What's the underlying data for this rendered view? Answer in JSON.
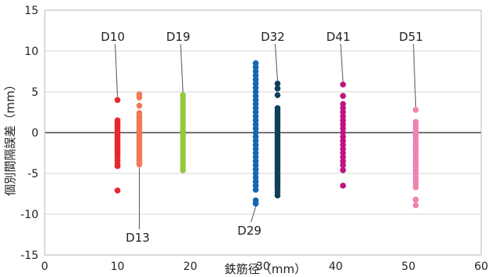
{
  "chart_data": {
    "type": "scatter",
    "title": "",
    "xlabel": "鉄筋径（mm）",
    "ylabel": "個別間隔誤差（mm）",
    "xlim": [
      0,
      60
    ],
    "ylim": [
      -15,
      15
    ],
    "x_ticks": [
      "0",
      "10",
      "20",
      "30",
      "40",
      "50",
      "60"
    ],
    "y_ticks": [
      "-15",
      "-10",
      "-5",
      "0",
      "5",
      "10",
      "15"
    ],
    "grid": "horizontal",
    "zero_line": true,
    "series": [
      {
        "name": "D10",
        "x": 10,
        "color": "#e8262b",
        "label_pos": "top",
        "values": [
          4.0,
          1.5,
          1.2,
          0.9,
          0.6,
          0.3,
          0.0,
          -0.3,
          -0.6,
          -0.9,
          -1.2,
          -1.5,
          -1.8,
          -2.1,
          -2.4,
          -2.7,
          -3.0,
          -3.4,
          -3.8,
          -4.1,
          -7.1
        ]
      },
      {
        "name": "D13",
        "x": 13,
        "color": "#ef7a55",
        "label_pos": "bottom",
        "values": [
          4.7,
          4.3,
          3.3,
          2.4,
          2.0,
          1.7,
          1.4,
          1.1,
          0.8,
          0.5,
          0.2,
          -0.1,
          -0.4,
          -0.7,
          -1.0,
          -1.3,
          -1.6,
          -1.9,
          -2.2,
          -2.5,
          -2.8,
          -3.1,
          -3.4,
          -3.7,
          -3.9
        ]
      },
      {
        "name": "D19",
        "x": 19,
        "color": "#95c93d",
        "label_pos": "top",
        "values": [
          4.6,
          4.2,
          3.8,
          3.4,
          3.0,
          2.6,
          2.2,
          1.8,
          1.4,
          1.0,
          0.6,
          0.2,
          -0.2,
          -0.6,
          -1.0,
          -1.4,
          -1.8,
          -2.2,
          -2.6,
          -3.0,
          -3.4,
          -3.8,
          -4.2,
          -4.6
        ]
      },
      {
        "name": "D29",
        "x": 29,
        "color": "#1466b4",
        "label_pos": "bottom",
        "values": [
          8.5,
          8.0,
          7.5,
          7.0,
          6.5,
          6.0,
          5.5,
          5.0,
          4.5,
          4.0,
          3.5,
          3.0,
          2.5,
          2.0,
          1.5,
          1.0,
          0.5,
          0.0,
          -0.5,
          -1.0,
          -1.5,
          -2.0,
          -2.5,
          -3.0,
          -3.5,
          -4.0,
          -4.5,
          -5.0,
          -5.5,
          -6.0,
          -6.5,
          -7.0,
          -8.3,
          -8.7
        ]
      },
      {
        "name": "D32",
        "x": 32,
        "color": "#0f4058",
        "label_pos": "top",
        "values": [
          6.0,
          5.4,
          4.6,
          3.0,
          2.7,
          2.4,
          2.1,
          1.8,
          1.5,
          1.2,
          0.9,
          0.6,
          0.3,
          0.0,
          -0.3,
          -0.6,
          -0.9,
          -1.2,
          -1.5,
          -1.8,
          -2.1,
          -2.4,
          -2.7,
          -3.0,
          -3.3,
          -3.6,
          -3.9,
          -4.2,
          -4.5,
          -4.8,
          -5.1,
          -5.4,
          -5.7,
          -6.0,
          -6.3,
          -6.6,
          -6.9,
          -7.3,
          -7.7
        ]
      },
      {
        "name": "D41",
        "x": 41,
        "color": "#bf1480",
        "label_pos": "top",
        "values": [
          5.9,
          4.5,
          3.5,
          3.0,
          2.5,
          2.0,
          1.5,
          1.0,
          0.5,
          0.0,
          -0.5,
          -1.0,
          -1.5,
          -2.0,
          -2.5,
          -3.0,
          -3.5,
          -4.0,
          -4.6,
          -6.5
        ]
      },
      {
        "name": "D51",
        "x": 51,
        "color": "#ef83b4",
        "label_pos": "top",
        "values": [
          2.8,
          1.3,
          0.9,
          0.5,
          0.1,
          -0.3,
          -0.7,
          -1.1,
          -1.5,
          -1.9,
          -2.3,
          -2.7,
          -3.1,
          -3.5,
          -3.9,
          -4.3,
          -4.7,
          -5.1,
          -5.5,
          -5.9,
          -6.3,
          -6.7,
          -8.2,
          -8.9
        ]
      }
    ]
  }
}
